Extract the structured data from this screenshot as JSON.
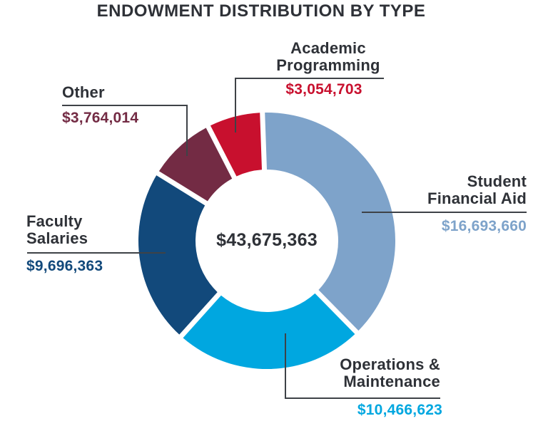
{
  "title": "ENDOWMENT DISTRIBUTION BY TYPE",
  "colors": {
    "text": "#2E3137",
    "leader_line": "#3E4247",
    "background": "#FFFFFF"
  },
  "center": {
    "total": "$43,675,363"
  },
  "callouts": {
    "academic_programming": {
      "lines": [
        "Academic",
        "Programming"
      ],
      "value": "$3,054,703",
      "color": "#C8102E"
    },
    "other": {
      "lines": [
        "Other"
      ],
      "value": "$3,764,014",
      "color": "#732B44"
    },
    "student_financial_aid": {
      "lines": [
        "Student",
        "Financial Aid"
      ],
      "value": "$16,693,660",
      "color": "#7EA3CA"
    },
    "faculty_salaries": {
      "lines": [
        "Faculty",
        "Salaries"
      ],
      "value": "$9,696,363",
      "color": "#12497B"
    },
    "operations_maintenance": {
      "lines": [
        "Operations &",
        "Maintenance"
      ],
      "value": "$10,466,623",
      "color": "#00A7E0"
    }
  },
  "chart_data": {
    "type": "donut",
    "title": "ENDOWMENT DISTRIBUTION BY TYPE",
    "center_total_value": 43675363,
    "center_total_label": "$43,675,363",
    "units": "USD",
    "direction": "clockwise",
    "start_angle_deg": -2,
    "legend_position": "none",
    "label_style": "external callouts with leader lines",
    "segments": [
      {
        "label": "Student Financial Aid",
        "value": 16693660,
        "value_label": "$16,693,660",
        "color": "#7EA3CA",
        "percent": 38.2
      },
      {
        "label": "Operations & Maintenance",
        "value": 10466623,
        "value_label": "$10,466,623",
        "color": "#00A7E0",
        "percent": 24.0
      },
      {
        "label": "Faculty Salaries",
        "value": 9696363,
        "value_label": "$9,696,363",
        "color": "#12497B",
        "percent": 22.2
      },
      {
        "label": "Other",
        "value": 3764014,
        "value_label": "$3,764,014",
        "color": "#732B44",
        "percent": 8.6
      },
      {
        "label": "Academic Programming",
        "value": 3054703,
        "value_label": "$3,054,703",
        "color": "#C8102E",
        "percent": 7.0
      }
    ]
  }
}
